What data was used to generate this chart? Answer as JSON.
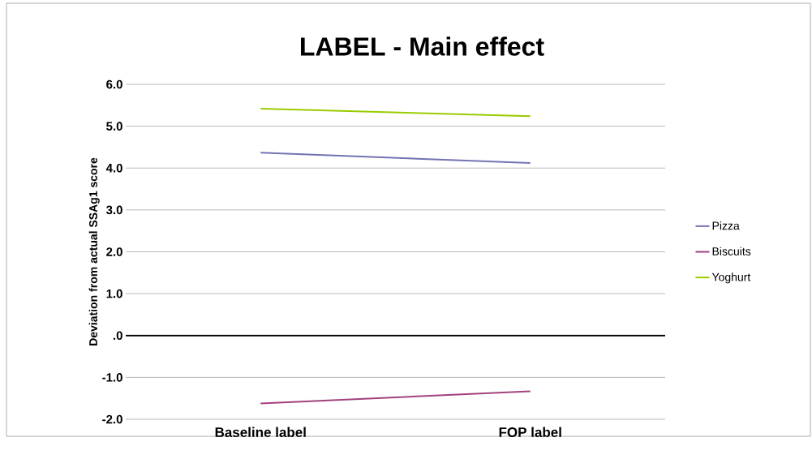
{
  "chart_data": {
    "type": "line",
    "title": "LABEL - Main effect",
    "ylabel": "Deviation from actual SSAg1 score",
    "categories": [
      "Baseline label",
      "FOP label"
    ],
    "series": [
      {
        "name": "Pizza",
        "color": "#7373b3",
        "values": [
          4.37,
          4.12
        ]
      },
      {
        "name": "Biscuits",
        "color": "#a3417d",
        "values": [
          -1.62,
          -1.33
        ]
      },
      {
        "name": "Yoghurt",
        "color": "#99cc00",
        "values": [
          5.42,
          5.24
        ]
      }
    ],
    "ylim": [
      -2,
      6
    ],
    "yticks": [
      {
        "value": -2,
        "label": "-2.0"
      },
      {
        "value": -1,
        "label": "-1.0"
      },
      {
        "value": 0,
        "label": ".0"
      },
      {
        "value": 1,
        "label": "1.0"
      },
      {
        "value": 2,
        "label": "2.0"
      },
      {
        "value": 3,
        "label": "3.0"
      },
      {
        "value": 4,
        "label": "4.0"
      },
      {
        "value": 5,
        "label": "5.0"
      },
      {
        "value": 6,
        "label": "6.0"
      }
    ],
    "ref_lines": [
      {
        "axis": "y",
        "value": 0,
        "color": "#000000"
      }
    ],
    "grid": "y",
    "legend": "right",
    "marker": "none",
    "line_style": "solid"
  }
}
